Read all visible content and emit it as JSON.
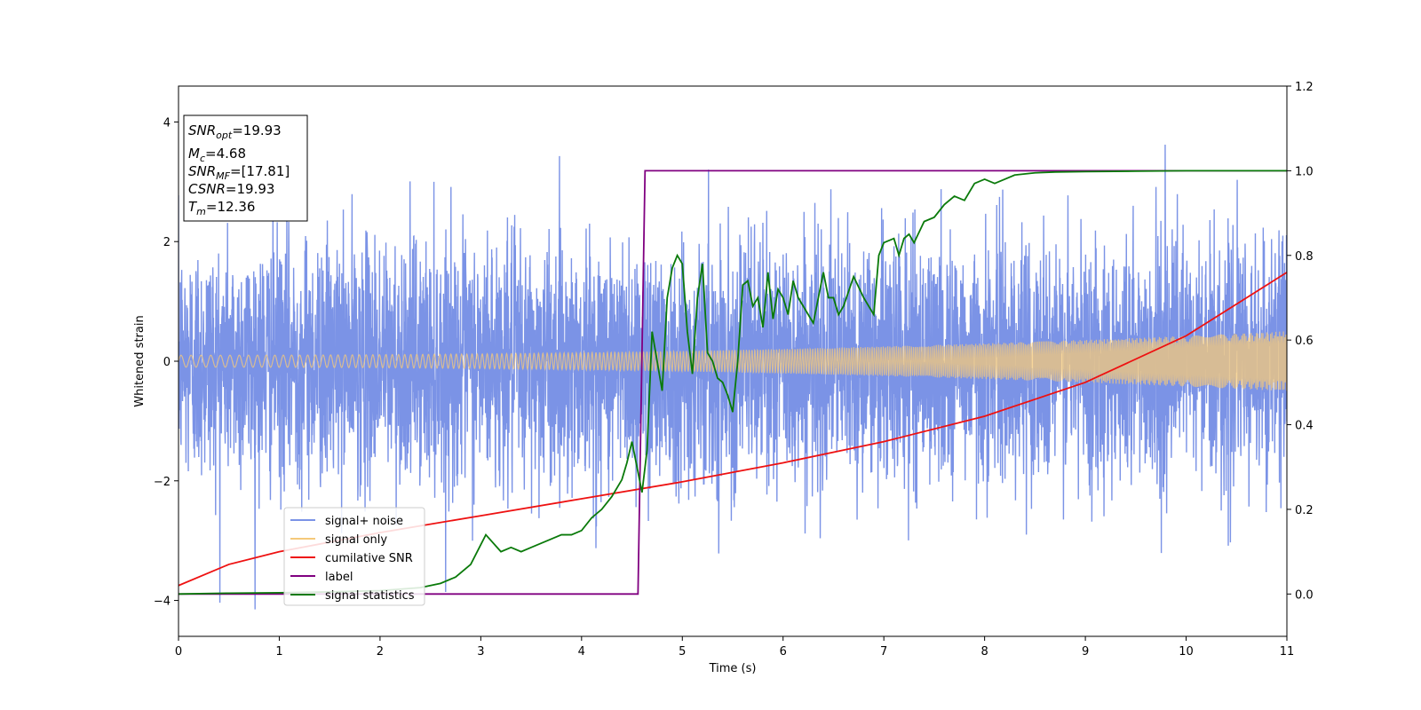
{
  "chart_data": {
    "type": "line",
    "xlabel": "Time (s)",
    "ylabel_left": "Whitened strain",
    "ylabel_right": "",
    "xlim": [
      0,
      11
    ],
    "ylim_left": [
      -4.6,
      4.6
    ],
    "ylim_right": [
      -0.1,
      1.2
    ],
    "x_ticks": [
      "0",
      "1",
      "2",
      "3",
      "4",
      "5",
      "6",
      "7",
      "8",
      "9",
      "10",
      "11"
    ],
    "y_ticks_left": [
      "−4",
      "−2",
      "0",
      "2",
      "4"
    ],
    "y_ticks_right": [
      "0.0",
      "0.2",
      "0.4",
      "0.6",
      "0.8",
      "1.0",
      "1.2"
    ],
    "grid": false,
    "legend_position": "lower-left",
    "info_box": {
      "snr_opt": {
        "name": "SNR",
        "sub": "opt",
        "value": "=19.93"
      },
      "mc": {
        "name": "M",
        "sub": "c",
        "value": "=4.68"
      },
      "snr_mf": {
        "name": "SNR",
        "sub": "MF",
        "value": "=[17.81]"
      },
      "csnr": {
        "name": "CSNR",
        "sub": "",
        "value": "=19.93"
      },
      "tm": {
        "name": "T",
        "sub": "m",
        "value": "=12.36"
      }
    },
    "series": [
      {
        "name": "signal+ noise",
        "color": "#7b93e6",
        "axis": "left",
        "description_values": {
          "x_range": [
            0,
            11
          ],
          "noise_std": 1.0,
          "max": 4.15,
          "min": -4.15
        }
      },
      {
        "name": "signal only",
        "color": "#f5c97a",
        "axis": "left",
        "envelope": {
          "x": [
            0,
            11
          ],
          "amplitude": [
            0.1,
            0.5
          ]
        }
      },
      {
        "name": "cumilative SNR",
        "color": "#ee1111",
        "axis": "right",
        "x": [
          0,
          0.5,
          1,
          2,
          3,
          4,
          5,
          6,
          7,
          8,
          9,
          10,
          11
        ],
        "y": [
          0.02,
          0.07,
          0.1,
          0.145,
          0.185,
          0.225,
          0.265,
          0.31,
          0.36,
          0.42,
          0.5,
          0.61,
          0.76
        ]
      },
      {
        "name": "label",
        "color": "#800080",
        "axis": "right",
        "x": [
          0,
          4.56,
          4.63,
          11
        ],
        "y": [
          0,
          0,
          1,
          1
        ]
      },
      {
        "name": "signal statistics",
        "color": "#0a7a0a",
        "axis": "right",
        "x": [
          0,
          0.5,
          1,
          1.5,
          2,
          2.4,
          2.6,
          2.75,
          2.9,
          3.05,
          3.2,
          3.3,
          3.4,
          3.5,
          3.6,
          3.7,
          3.8,
          3.9,
          4.0,
          4.1,
          4.2,
          4.3,
          4.4,
          4.45,
          4.5,
          4.55,
          4.6,
          4.65,
          4.7,
          4.75,
          4.8,
          4.85,
          4.9,
          4.95,
          5.0,
          5.05,
          5.1,
          5.15,
          5.2,
          5.25,
          5.3,
          5.35,
          5.4,
          5.45,
          5.5,
          5.55,
          5.6,
          5.65,
          5.7,
          5.75,
          5.8,
          5.85,
          5.9,
          5.95,
          6.0,
          6.05,
          6.1,
          6.15,
          6.2,
          6.3,
          6.4,
          6.45,
          6.5,
          6.55,
          6.6,
          6.7,
          6.8,
          6.9,
          6.95,
          7.0,
          7.1,
          7.15,
          7.2,
          7.25,
          7.3,
          7.4,
          7.5,
          7.6,
          7.7,
          7.8,
          7.9,
          8.0,
          8.1,
          8.2,
          8.3,
          8.5,
          8.7,
          9.0,
          9.5,
          10.0,
          11.0
        ],
        "y": [
          0.0,
          0.002,
          0.003,
          0.005,
          0.008,
          0.015,
          0.025,
          0.04,
          0.07,
          0.14,
          0.1,
          0.11,
          0.1,
          0.11,
          0.12,
          0.13,
          0.14,
          0.14,
          0.15,
          0.18,
          0.2,
          0.23,
          0.27,
          0.31,
          0.36,
          0.3,
          0.24,
          0.34,
          0.62,
          0.55,
          0.48,
          0.7,
          0.77,
          0.8,
          0.78,
          0.62,
          0.52,
          0.7,
          0.78,
          0.57,
          0.55,
          0.51,
          0.5,
          0.47,
          0.43,
          0.55,
          0.73,
          0.74,
          0.68,
          0.7,
          0.63,
          0.76,
          0.65,
          0.72,
          0.7,
          0.66,
          0.74,
          0.7,
          0.68,
          0.64,
          0.76,
          0.7,
          0.7,
          0.66,
          0.68,
          0.75,
          0.7,
          0.66,
          0.8,
          0.83,
          0.84,
          0.8,
          0.84,
          0.85,
          0.83,
          0.88,
          0.89,
          0.92,
          0.94,
          0.93,
          0.97,
          0.98,
          0.97,
          0.98,
          0.99,
          0.995,
          0.997,
          0.998,
          0.999,
          1.0,
          1.0
        ]
      }
    ],
    "legend": [
      {
        "label": "signal+ noise",
        "color": "#7b93e6"
      },
      {
        "label": "signal only",
        "color": "#f5c97a"
      },
      {
        "label": "cumilative SNR",
        "color": "#ee1111"
      },
      {
        "label": "label",
        "color": "#800080"
      },
      {
        "label": "signal statistics",
        "color": "#0a7a0a"
      }
    ]
  }
}
